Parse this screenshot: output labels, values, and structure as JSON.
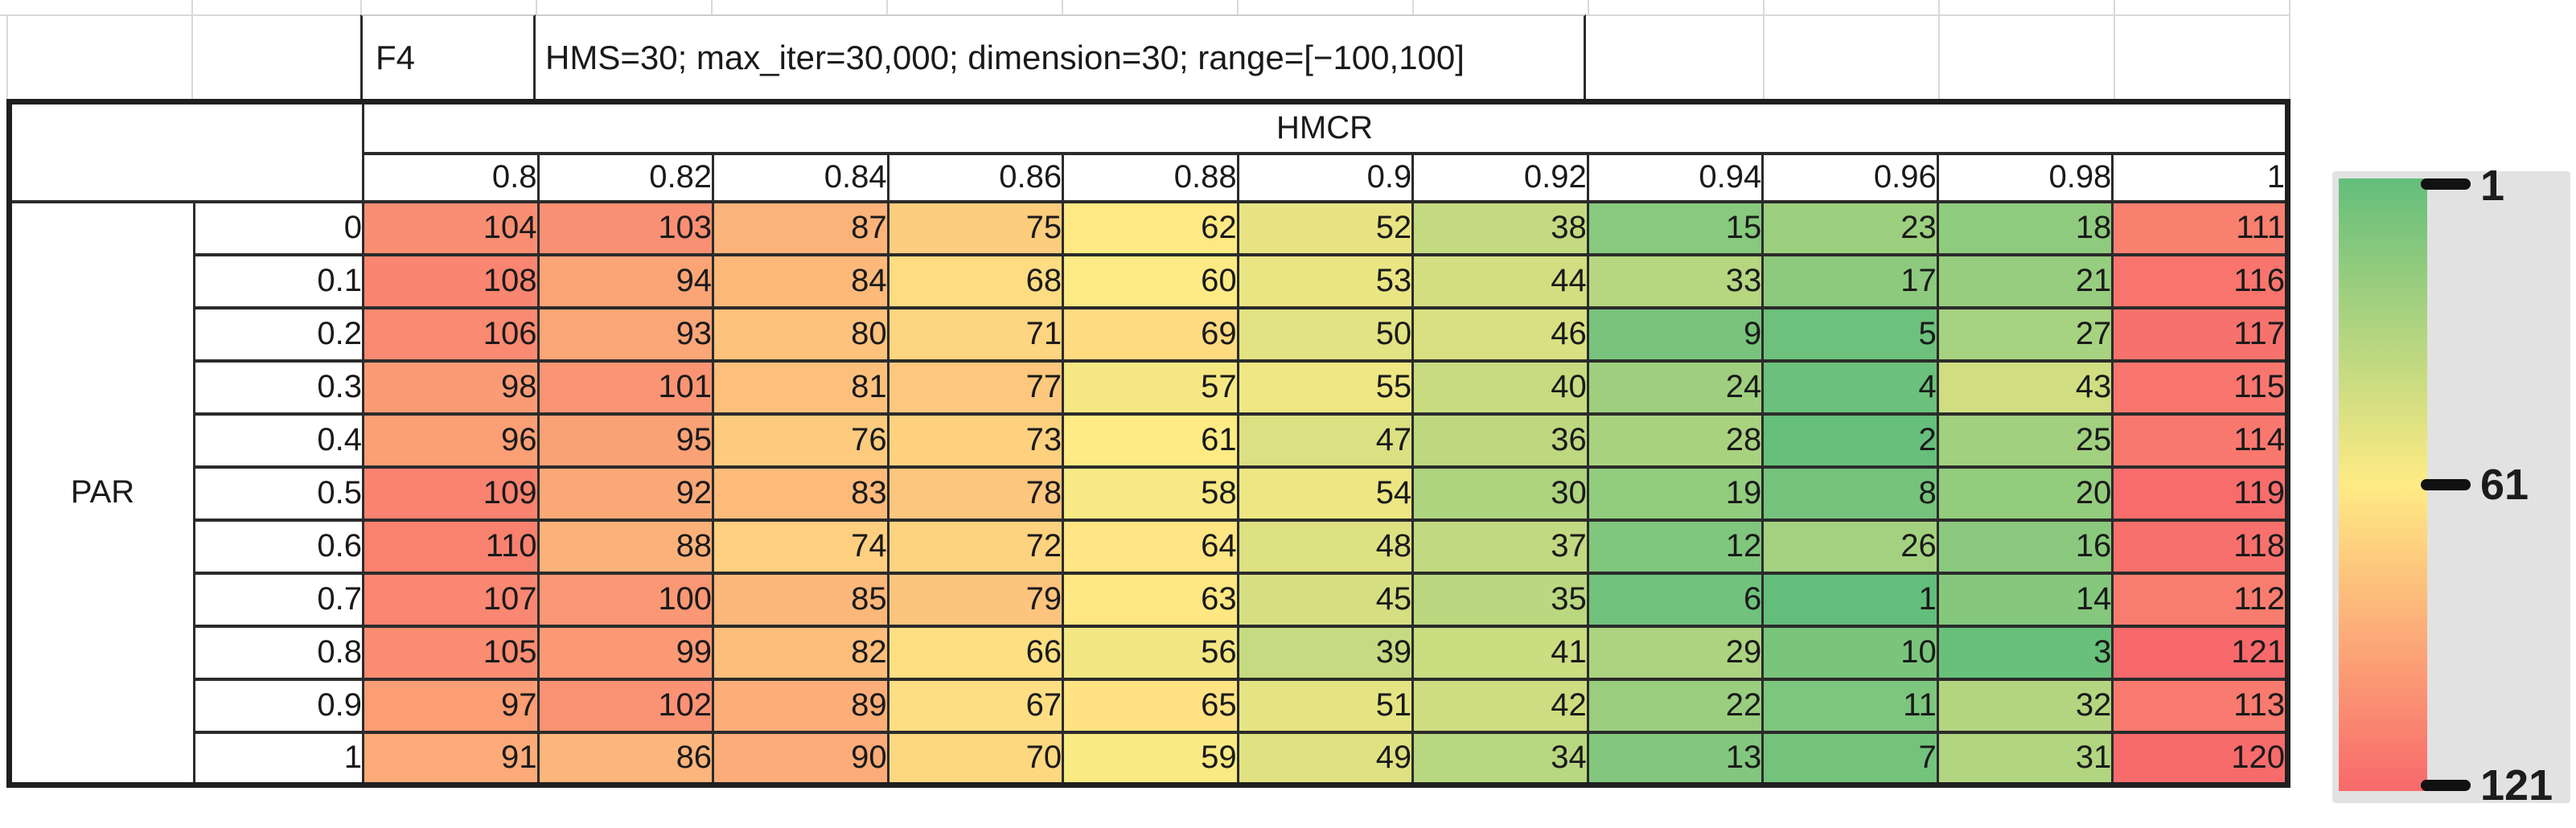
{
  "sheet": {
    "function_label": "F4",
    "settings_label": "HMS=30; max_iter=30,000; dimension=30; range=[−100,100]"
  },
  "chart_data": {
    "type": "heatmap",
    "title": "F4",
    "subtitle": "HMS=30; max_iter=30,000; dimension=30; range=[−100,100]",
    "col_axis_label": "HMCR",
    "row_axis_label": "PAR",
    "columns": [
      "0.8",
      "0.82",
      "0.84",
      "0.86",
      "0.88",
      "0.9",
      "0.92",
      "0.94",
      "0.96",
      "0.98",
      "1"
    ],
    "rows": [
      "0",
      "0.1",
      "0.2",
      "0.3",
      "0.4",
      "0.5",
      "0.6",
      "0.7",
      "0.8",
      "0.9",
      "1"
    ],
    "values": [
      [
        104,
        103,
        87,
        75,
        62,
        52,
        38,
        15,
        23,
        18,
        111
      ],
      [
        108,
        94,
        84,
        68,
        60,
        53,
        44,
        33,
        17,
        21,
        116
      ],
      [
        106,
        93,
        80,
        71,
        69,
        50,
        46,
        9,
        5,
        27,
        117
      ],
      [
        98,
        101,
        81,
        77,
        57,
        55,
        40,
        24,
        4,
        43,
        115
      ],
      [
        96,
        95,
        76,
        73,
        61,
        47,
        36,
        28,
        2,
        25,
        114
      ],
      [
        109,
        92,
        83,
        78,
        58,
        54,
        30,
        19,
        8,
        20,
        119
      ],
      [
        110,
        88,
        74,
        72,
        64,
        48,
        37,
        12,
        26,
        16,
        118
      ],
      [
        107,
        100,
        85,
        79,
        63,
        45,
        35,
        6,
        1,
        14,
        112
      ],
      [
        105,
        99,
        82,
        66,
        56,
        39,
        41,
        29,
        10,
        3,
        121
      ],
      [
        97,
        102,
        89,
        67,
        65,
        51,
        42,
        22,
        11,
        32,
        113
      ],
      [
        91,
        86,
        90,
        70,
        59,
        49,
        34,
        13,
        7,
        31,
        120
      ]
    ],
    "color_scale": {
      "min": {
        "value": 1,
        "color": "#63BE7B"
      },
      "mid": {
        "value": 61,
        "color": "#FFEB84"
      },
      "max": {
        "value": 121,
        "color": "#F8696B"
      }
    },
    "legend": {
      "ticks": [
        "1",
        "61",
        "121"
      ],
      "panel_color": "#E2E2E2"
    },
    "layout_hints": {
      "legend_position": "right",
      "grid": "all-borders",
      "value_align": "right"
    }
  }
}
